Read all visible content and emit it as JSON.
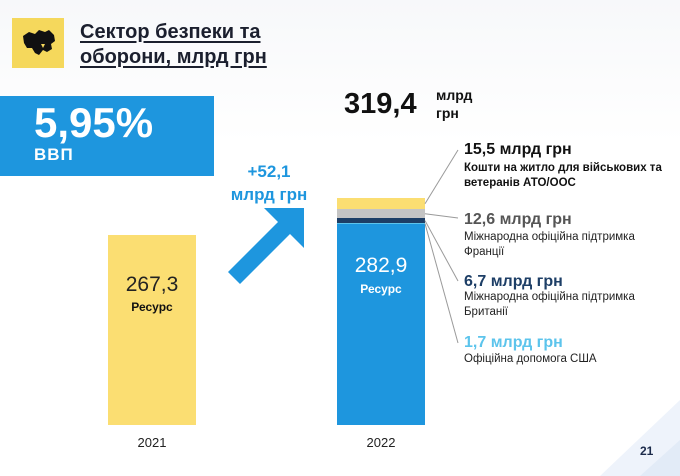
{
  "title": "Сектор безпеки та оборони, млрд грн",
  "gdp_share": {
    "value": "5,95%",
    "label": "ВВП"
  },
  "total_2022": {
    "value": "319,4",
    "unit": "млрд грн"
  },
  "increase": {
    "value": "+52,1",
    "unit": "млрд грн"
  },
  "page_number": "21",
  "colors": {
    "blue": "#1e96de",
    "yellow": "#fbde72",
    "gray": "#c4c4c4",
    "navy": "#1d3e66",
    "light_blue": "#5cc4ec"
  },
  "chart_data": {
    "type": "bar",
    "stacked": true,
    "categories": [
      "2021",
      "2022"
    ],
    "series": [
      {
        "name": "Ресурс",
        "values": [
          267.3,
          282.9
        ],
        "value_labels": [
          "267,3",
          "282,9"
        ],
        "color_key": "resource"
      },
      {
        "name": "Офіційна допомога США",
        "values": [
          0,
          1.7
        ],
        "amount_label": "1,7 млрд грн",
        "color": "#5cc4ec"
      },
      {
        "name": "Міжнародна офіційна підтримка Британії",
        "values": [
          0,
          6.7
        ],
        "amount_label": "6,7 млрд грн",
        "color": "#1d3e66"
      },
      {
        "name": "Міжнародна офіційна підтримка Франції",
        "values": [
          0,
          12.6
        ],
        "amount_label": "12,6 млрд грн",
        "color": "#c4c4c4"
      },
      {
        "name": "Кошти на житло для військових та ветеранів АТО/ООС",
        "values": [
          0,
          15.5
        ],
        "amount_label": "15,5  млрд грн",
        "color": "#fbde72"
      }
    ],
    "ylim": [
      0,
      340
    ],
    "grid": false,
    "legend": "right"
  }
}
